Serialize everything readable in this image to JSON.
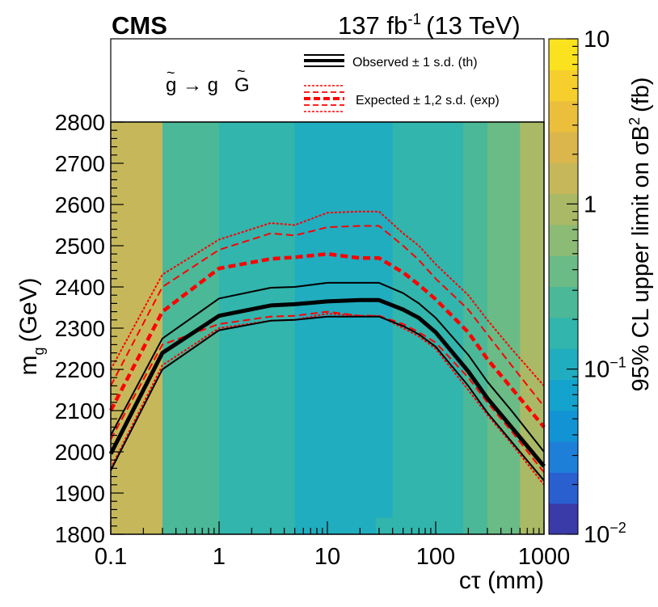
{
  "header": {
    "experiment": "CMS",
    "luminosity": "137 fb",
    "lumi_exponent": "-1",
    "energy": "(13 TeV)"
  },
  "legend": {
    "process_parts": [
      "g",
      "→ g",
      "G"
    ],
    "observed": "Observed ± 1 s.d. (th)",
    "expected": "Expected ± 1,2 s.d. (exp)"
  },
  "colors": {
    "observed": "#000000",
    "expected": "#ff0000"
  },
  "chart_data": {
    "type": "heatmap",
    "xlabel": "cτ (mm)",
    "ylabel_main": "m",
    "ylabel_sub": "g",
    "ylabel_unit": "(GeV)",
    "zlabel": "95% CL upper limit on σB",
    "zlabel_exp": "2",
    "zlabel_unit": "(fb)",
    "x_scale": "log",
    "xlim": [
      0.1,
      1000
    ],
    "ylim": [
      1800,
      2800
    ],
    "zlim": [
      0.01,
      10
    ],
    "x_ticks": [
      0.1,
      1,
      10,
      100,
      1000
    ],
    "x_tick_labels": [
      "0.1",
      "1",
      "10",
      "100",
      "1000"
    ],
    "y_ticks": [
      1800,
      1900,
      2000,
      2100,
      2200,
      2300,
      2400,
      2500,
      2600,
      2700,
      2800
    ],
    "y_tick_labels": [
      "1800",
      "1900",
      "2000",
      "2100",
      "2200",
      "2300",
      "2400",
      "2500",
      "2600",
      "2700",
      "2800"
    ],
    "z_tick_labels": [
      {
        "value": 10,
        "base": "10",
        "exp": ""
      },
      {
        "value": 1,
        "base": "1",
        "exp": ""
      },
      {
        "value": 0.1,
        "base": "10",
        "exp": "−1"
      },
      {
        "value": 0.01,
        "base": "10",
        "exp": "−2"
      }
    ],
    "colorscale": [
      "#3a3aa8",
      "#2a5fd0",
      "#1e7fd8",
      "#1294d4",
      "#13a3cc",
      "#20adbf",
      "#32b5ac",
      "#4bb898",
      "#6abb86",
      "#8bbb75",
      "#aab966",
      "#c6b85a",
      "#dbb64c",
      "#ebbf3c",
      "#f6cf2c",
      "#fbe21e"
    ],
    "heatmap_columns": [
      {
        "x0": 0.1,
        "x1": 0.3,
        "z": 1.2
      },
      {
        "x0": 0.3,
        "x1": 1,
        "z": 0.24
      },
      {
        "x0": 1,
        "x1": 5,
        "z": 0.15
      },
      {
        "x0": 5,
        "x1": 40,
        "z": 0.12
      },
      {
        "x0": 40,
        "x1": 100,
        "z": 0.15
      },
      {
        "x0": 100,
        "x1": 180,
        "z": 0.2
      },
      {
        "x0": 180,
        "x1": 300,
        "z": 0.27
      },
      {
        "x0": 300,
        "x1": 600,
        "z": 0.4
      },
      {
        "x0": 600,
        "x1": 1000,
        "z": 0.75
      }
    ],
    "heatmap_patches": [
      {
        "x0": 28,
        "x1": 40,
        "y0": 1800,
        "y1": 1840,
        "z": 0.15
      }
    ],
    "x": [
      0.1,
      0.3,
      1,
      3,
      5,
      10,
      20,
      30,
      50,
      70,
      100,
      200,
      300,
      500,
      1000
    ],
    "series": [
      {
        "name": "Observed",
        "style": "observed-central",
        "y": [
          1995,
          2240,
          2330,
          2355,
          2358,
          2365,
          2368,
          2368,
          2345,
          2325,
          2290,
          2195,
          2130,
          2060,
          1965
        ]
      },
      {
        "style": "observed-band",
        "y": [
          2040,
          2275,
          2372,
          2398,
          2400,
          2410,
          2410,
          2410,
          2385,
          2360,
          2325,
          2235,
          2170,
          2100,
          2000
        ]
      },
      {
        "style": "observed-band",
        "y": [
          1955,
          2200,
          2295,
          2318,
          2320,
          2328,
          2328,
          2328,
          2305,
          2285,
          2255,
          2160,
          2095,
          2025,
          1930
        ]
      },
      {
        "name": "Expected",
        "style": "expected-central",
        "y": [
          2100,
          2340,
          2445,
          2468,
          2472,
          2480,
          2470,
          2470,
          2435,
          2405,
          2370,
          2290,
          2225,
          2155,
          2060
        ]
      },
      {
        "style": "expected-1sd",
        "y": [
          2160,
          2400,
          2490,
          2530,
          2525,
          2545,
          2548,
          2548,
          2500,
          2465,
          2420,
          2345,
          2285,
          2210,
          2110
        ]
      },
      {
        "style": "expected-1sd",
        "y": [
          2030,
          2260,
          2310,
          2328,
          2330,
          2340,
          2330,
          2330,
          2310,
          2290,
          2265,
          2180,
          2120,
          2050,
          1950
        ]
      },
      {
        "style": "expected-2sd",
        "y": [
          2200,
          2430,
          2515,
          2555,
          2550,
          2580,
          2583,
          2583,
          2530,
          2500,
          2455,
          2380,
          2320,
          2250,
          2160
        ]
      },
      {
        "style": "expected-2sd",
        "y": [
          1960,
          2210,
          2300,
          2318,
          2320,
          2335,
          2330,
          2330,
          2300,
          2280,
          2250,
          2150,
          2090,
          2020,
          1920
        ]
      }
    ]
  }
}
